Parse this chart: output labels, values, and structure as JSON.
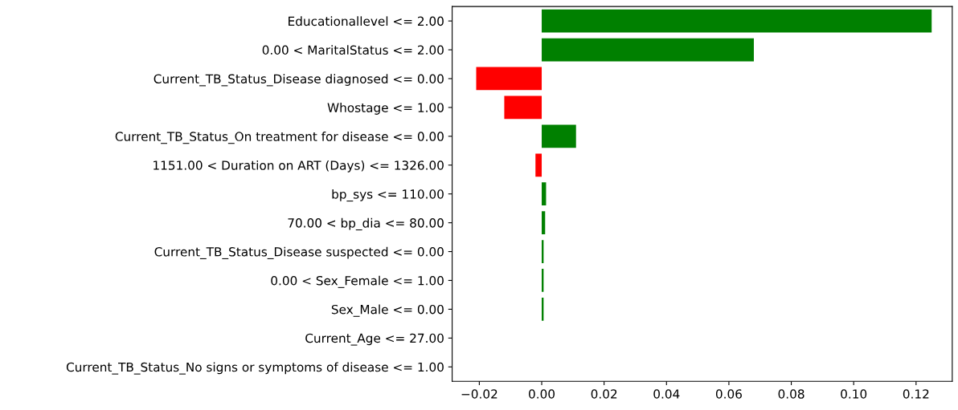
{
  "chart_data": {
    "type": "bar",
    "orientation": "horizontal",
    "categories": [
      "Educationallevel <= 2.00",
      "0.00 < MaritalStatus <= 2.00",
      "Current_TB_Status_Disease diagnosed <= 0.00",
      "Whostage <= 1.00",
      "Current_TB_Status_On treatment for disease <= 0.00",
      "1151.00 < Duration on ART (Days) <= 1326.00",
      "bp_sys <= 110.00",
      "70.00 < bp_dia <= 80.00",
      "Current_TB_Status_Disease suspected <= 0.00",
      "0.00 < Sex_Female <= 1.00",
      "Sex_Male <= 0.00",
      "Current_Age <= 27.00",
      "Current_TB_Status_No signs or symptoms of disease <= 1.00"
    ],
    "values": [
      0.125,
      0.068,
      -0.021,
      -0.012,
      0.011,
      -0.002,
      0.0014,
      0.0011,
      0.0006,
      0.0006,
      0.0006,
      0,
      0
    ],
    "colors": [
      "#008000",
      "#008000",
      "#ff0000",
      "#ff0000",
      "#008000",
      "#ff0000",
      "#008000",
      "#008000",
      "#008000",
      "#008000",
      "#008000",
      "#008000",
      "#008000"
    ],
    "xlim": [
      -0.0287,
      0.1316
    ],
    "xticks": [
      {
        "value": -0.02,
        "label": "−0.02"
      },
      {
        "value": 0,
        "label": "0.00"
      },
      0.02,
      0.04,
      0.06,
      0.08,
      {
        "value": 0.1,
        "label": "0.10"
      },
      0.12
    ],
    "grid": false,
    "legend": false
  }
}
